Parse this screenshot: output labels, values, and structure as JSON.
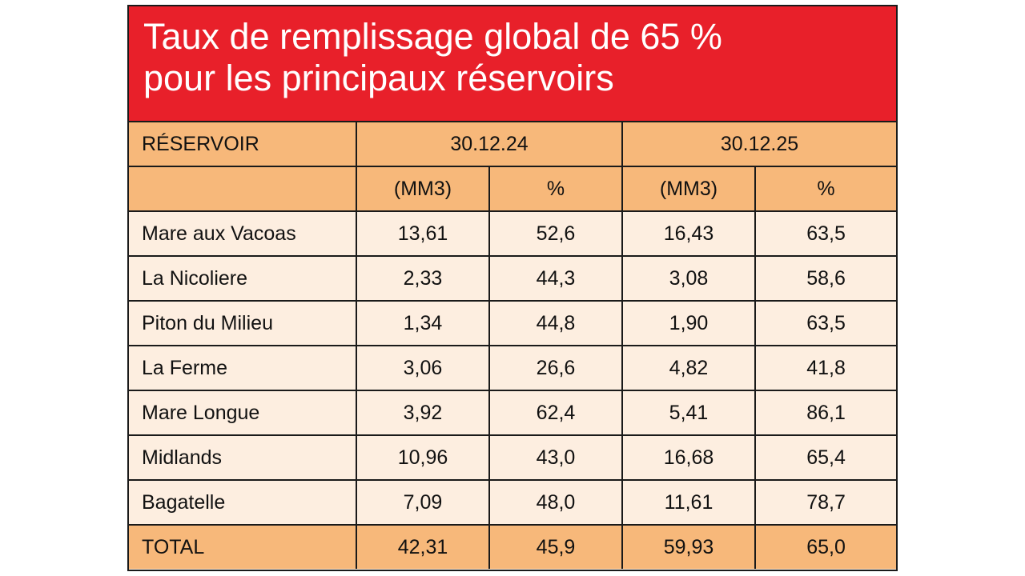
{
  "title": {
    "line1": "Taux de remplissage global de 65 %",
    "line2": "pour les principaux réservoirs"
  },
  "header": {
    "reservoir": "RÉSERVOIR",
    "date1": "30.12.24",
    "date2": "30.12.25",
    "unit_volume": "(MM3)",
    "unit_percent": "%"
  },
  "rows": [
    {
      "name": "Mare aux Vacoas",
      "v2024": "13,61",
      "p2024": "52,6",
      "v2025": "16,43",
      "p2025": "63,5"
    },
    {
      "name": "La Nicoliere",
      "v2024": "2,33",
      "p2024": "44,3",
      "v2025": "3,08",
      "p2025": "58,6"
    },
    {
      "name": "Piton du Milieu",
      "v2024": "1,34",
      "p2024": "44,8",
      "v2025": "1,90",
      "p2025": "63,5"
    },
    {
      "name": "La Ferme",
      "v2024": "3,06",
      "p2024": "26,6",
      "v2025": "4,82",
      "p2025": "41,8"
    },
    {
      "name": "Mare Longue",
      "v2024": "3,92",
      "p2024": "62,4",
      "v2025": "5,41",
      "p2025": "86,1"
    },
    {
      "name": "Midlands",
      "v2024": "10,96",
      "p2024": "43,0",
      "v2025": "16,68",
      "p2025": "65,4"
    },
    {
      "name": "Bagatelle",
      "v2024": "7,09",
      "p2024": "48,0",
      "v2025": "11,61",
      "p2025": "78,7"
    }
  ],
  "total": {
    "name": "TOTAL",
    "v2024": "42,31",
    "p2024": "45,9",
    "v2025": "59,93",
    "p2025": "65,0"
  },
  "colors": {
    "title_band": "#e8202a",
    "header_fill": "#f7b87a",
    "body_fill": "#fdeee0",
    "border": "#1a1a1a"
  }
}
